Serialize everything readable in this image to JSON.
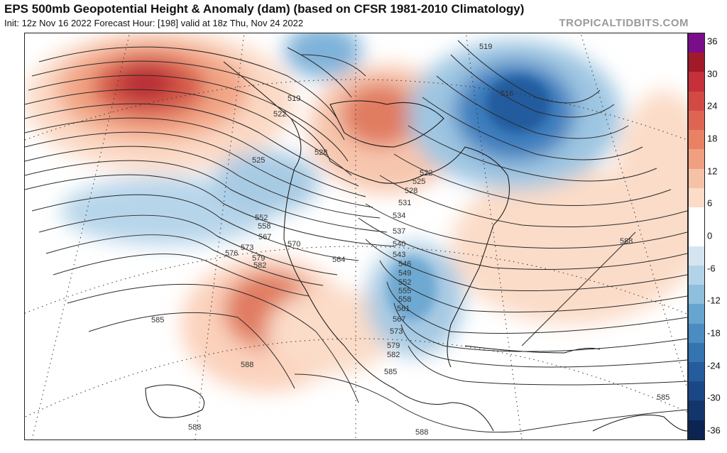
{
  "header": {
    "title": "EPS 500mb Geopotential Height & Anomaly (dam) (based on CFSR 1981-2010 Climatology)",
    "subtitle": "Init: 12z Nov 16 2022   Forecast Hour: [198]   valid at 18z Thu, Nov 24 2022",
    "site": "TROPICALTIDBITS.COM"
  },
  "colorbar": {
    "ticks": [
      "36",
      "30",
      "24",
      "18",
      "12",
      "6",
      "0",
      "-6",
      "-12",
      "-18",
      "-24",
      "-30",
      "-36"
    ],
    "colors": [
      "#7a0d8a",
      "#a11a2a",
      "#c5303a",
      "#d34a45",
      "#de6552",
      "#e88263",
      "#f0a080",
      "#f6c2a5",
      "#fbdcc8",
      "#ffffff",
      "#ffffff",
      "#d4e5f1",
      "#b3d3e8",
      "#8ebfdd",
      "#66a5cf",
      "#4b8cc2",
      "#3474b1",
      "#245c9e",
      "#1a4886",
      "#12366c",
      "#0b2452"
    ]
  },
  "contour_labels": [
    "519",
    "519",
    "516",
    "522",
    "525",
    "528",
    "522",
    "525",
    "528",
    "531",
    "534",
    "537",
    "540",
    "543",
    "546",
    "549",
    "552",
    "555",
    "558",
    "561",
    "567",
    "573",
    "579",
    "582",
    "585",
    "552",
    "558",
    "567",
    "570",
    "573",
    "576",
    "579",
    "582",
    "564",
    "585",
    "588",
    "588",
    "588",
    "588",
    "585"
  ],
  "colors": {
    "positive_anomaly": "#d9573f",
    "negative_anomaly": "#3f7fbf",
    "contour": "#2a2a2a"
  }
}
